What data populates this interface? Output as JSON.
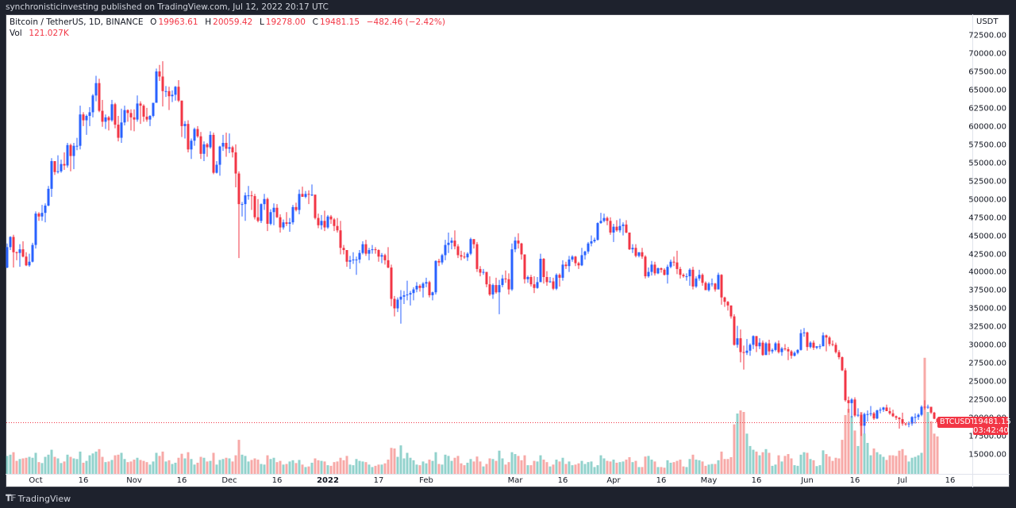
{
  "header": {
    "published": "synchronisticinvesting published on TradingView.com, Jul 12, 2022 20:17 UTC"
  },
  "legend": {
    "symbol": "Bitcoin / TetherUS, 1D, BINANCE",
    "o_label": "O",
    "o": "19963.61",
    "h_label": "H",
    "h": "20059.42",
    "l_label": "L",
    "l": "19278.00",
    "c_label": "C",
    "c": "19481.15",
    "change": "−482.46 (−2.42%)",
    "vol_label": "Vol",
    "vol": "121.027K"
  },
  "price_axis": {
    "unit": "USDT",
    "labels": [
      "72500.00",
      "70000.00",
      "67500.00",
      "65000.00",
      "62500.00",
      "60000.00",
      "57500.00",
      "55000.00",
      "52500.00",
      "50000.00",
      "47500.00",
      "45000.00",
      "42500.00",
      "40000.00",
      "37500.00",
      "35000.00",
      "32500.00",
      "30000.00",
      "27500.00",
      "25000.00",
      "22500.00",
      "20000.00",
      "17500.00",
      "15000.00"
    ],
    "current_symbol": "BTCUSDT",
    "current_price": "19481.15",
    "countdown": "03:42:40"
  },
  "time_axis": {
    "labels": [
      {
        "text": "Oct",
        "date": "2021-10-01"
      },
      {
        "text": "16",
        "date": "2021-10-16"
      },
      {
        "text": "Nov",
        "date": "2021-11-01"
      },
      {
        "text": "16",
        "date": "2021-11-16"
      },
      {
        "text": "Dec",
        "date": "2021-12-01"
      },
      {
        "text": "16",
        "date": "2021-12-16"
      },
      {
        "text": "2022",
        "date": "2022-01-01",
        "bold": true
      },
      {
        "text": "17",
        "date": "2022-01-17"
      },
      {
        "text": "Feb",
        "date": "2022-02-01"
      },
      {
        "text": "Mar",
        "date": "2022-03-01"
      },
      {
        "text": "16",
        "date": "2022-03-16"
      },
      {
        "text": "Apr",
        "date": "2022-04-01"
      },
      {
        "text": "16",
        "date": "2022-04-16"
      },
      {
        "text": "May",
        "date": "2022-05-01"
      },
      {
        "text": "16",
        "date": "2022-05-16"
      },
      {
        "text": "Jun",
        "date": "2022-06-01"
      },
      {
        "text": "16",
        "date": "2022-06-16"
      },
      {
        "text": "Jul",
        "date": "2022-07-01"
      },
      {
        "text": "16",
        "date": "2022-07-16"
      }
    ]
  },
  "footer": {
    "brand": "TradingView",
    "logo_text": "17"
  },
  "colors": {
    "up": "#2962ff",
    "down": "#f23645",
    "vol_up": "rgba(38,166,154,0.5)",
    "vol_down": "rgba(239,83,80,0.5)",
    "background": "#1e222d"
  },
  "chart_data": {
    "type": "candlestick",
    "symbol": "BTCUSDT",
    "interval": "1D",
    "first_date": "2021-09-22",
    "first_open": 40700,
    "ylim": [
      12500,
      75000
    ],
    "close": [
      43500,
      44900,
      42800,
      42700,
      43200,
      42200,
      41000,
      41500,
      43800,
      48100,
      47700,
      48200,
      49200,
      51500,
      55300,
      53800,
      53900,
      54900,
      54700,
      57500,
      56000,
      57400,
      57400,
      61700,
      60900,
      61500,
      62000,
      64300,
      66000,
      62200,
      60700,
      61300,
      60900,
      63100,
      60300,
      58500,
      60600,
      62300,
      61900,
      61300,
      61000,
      63200,
      62900,
      61400,
      61000,
      61500,
      63300,
      67600,
      66900,
      64900,
      64900,
      64200,
      64400,
      65500,
      63600,
      60100,
      60400,
      56900,
      58100,
      59700,
      58700,
      56300,
      57600,
      57200,
      58900,
      53700,
      54800,
      57300,
      57800,
      57000,
      57200,
      56500,
      53600,
      49400,
      49400,
      50600,
      50600,
      50500,
      47600,
      47100,
      49400,
      50100,
      46700,
      48300,
      48900,
      47600,
      46200,
      46900,
      46700,
      46900,
      49000,
      48600,
      50800,
      50400,
      50800,
      50700,
      50700,
      47500,
      46500,
      47100,
      46200,
      47700,
      47300,
      46400,
      45800,
      43400,
      43100,
      41500,
      41700,
      41800,
      41800,
      42700,
      43900,
      42600,
      43100,
      43200,
      43100,
      42200,
      42400,
      41700,
      40700,
      36400,
      35100,
      36300,
      36700,
      36900,
      37000,
      37200,
      37700,
      38200,
      37900,
      38500,
      38700,
      36900,
      37300,
      41600,
      41400,
      42400,
      43800,
      44100,
      44400,
      43600,
      42400,
      42200,
      42100,
      42600,
      44600,
      43900,
      40500,
      40000,
      40100,
      38400,
      37000,
      38300,
      37300,
      38300,
      39200,
      39100,
      37700,
      43200,
      44400,
      44000,
      42500,
      39100,
      39400,
      38400,
      37900,
      38700,
      41900,
      39400,
      38700,
      38800,
      37800,
      39700,
      39300,
      41100,
      40900,
      41800,
      42200,
      41300,
      41000,
      42400,
      42900,
      44000,
      44300,
      44500,
      46800,
      47100,
      47500,
      47100,
      45500,
      46300,
      45800,
      46400,
      46600,
      45500,
      43200,
      43400,
      42300,
      42800,
      42200,
      39500,
      40100,
      41100,
      39900,
      40600,
      40400,
      39700,
      40800,
      41500,
      41400,
      40500,
      39700,
      39500,
      39500,
      40400,
      38100,
      39200,
      39700,
      38600,
      37600,
      38500,
      38500,
      37700,
      39700,
      36600,
      36000,
      35500,
      34000,
      30100,
      31000,
      29100,
      29000,
      29300,
      30100,
      31300,
      29900,
      30400,
      28700,
      30300,
      29200,
      29400,
      30300,
      29100,
      29600,
      29500,
      29200,
      28600,
      29000,
      29400,
      31700,
      31800,
      29800,
      30400,
      29700,
      29900,
      29900,
      31400,
      31100,
      30200,
      30100,
      29100,
      28400,
      26600,
      22500,
      22100,
      22600,
      20400,
      20500,
      19000,
      20600,
      20600,
      20700,
      20000,
      21100,
      21200,
      21500,
      21000,
      20700,
      20300,
      20100,
      19900,
      19300,
      19200,
      19300,
      20200,
      20200,
      20500,
      21600,
      21580,
      21600,
      20800,
      19963.61,
      19481.15
    ],
    "high": [
      44000,
      45000,
      45200,
      42900,
      43900,
      44300,
      42800,
      42600,
      44100,
      48400,
      48300,
      49300,
      49500,
      51900,
      55700,
      55300,
      56100,
      55500,
      56500,
      57800,
      57700,
      57800,
      58500,
      62900,
      62000,
      61700,
      62700,
      64500,
      67000,
      66600,
      63700,
      61700,
      61500,
      63700,
      63300,
      61500,
      62500,
      62900,
      62400,
      62400,
      62400,
      64300,
      63500,
      63100,
      62600,
      61600,
      63300,
      68000,
      68500,
      69000,
      65600,
      65500,
      65000,
      65600,
      66400,
      63600,
      60800,
      60900,
      58400,
      59900,
      60100,
      59300,
      58000,
      57800,
      59400,
      59200,
      55300,
      57400,
      58900,
      59200,
      59100,
      57400,
      57600,
      53900,
      49700,
      51000,
      51900,
      51200,
      50800,
      50100,
      49500,
      50800,
      50300,
      48700,
      49500,
      49400,
      48000,
      47300,
      48300,
      47500,
      49300,
      49600,
      51400,
      51800,
      51200,
      51300,
      52100,
      50700,
      48100,
      47900,
      48500,
      47900,
      47900,
      47500,
      47500,
      47100,
      43800,
      43100,
      42300,
      42800,
      42200,
      43100,
      44300,
      44500,
      43400,
      43800,
      43500,
      43200,
      42700,
      42600,
      43500,
      41100,
      36800,
      36600,
      37600,
      37500,
      38900,
      37500,
      38000,
      38700,
      38400,
      38700,
      39300,
      38900,
      37400,
      41700,
      41900,
      42600,
      44500,
      45500,
      44800,
      45800,
      43900,
      43000,
      42800,
      42800,
      44800,
      44600,
      44200,
      40900,
      40500,
      40100,
      39500,
      38500,
      39300,
      39000,
      39700,
      40300,
      39900,
      44000,
      44900,
      45400,
      44100,
      42500,
      39600,
      39700,
      39500,
      39400,
      42600,
      42000,
      40200,
      39400,
      39300,
      39900,
      39900,
      41700,
      41500,
      42300,
      42400,
      42300,
      41500,
      43400,
      43000,
      44200,
      45100,
      44800,
      46900,
      48200,
      48100,
      47700,
      47600,
      46700,
      47200,
      47400,
      46900,
      47200,
      45500,
      43900,
      43900,
      42800,
      43400,
      42400,
      40700,
      41600,
      41500,
      40700,
      40700,
      40600,
      41100,
      41800,
      42200,
      43000,
      40800,
      39900,
      39900,
      40600,
      40800,
      39500,
      40400,
      39900,
      38800,
      38700,
      39200,
      38600,
      40000,
      39800,
      36700,
      36100,
      35500,
      34300,
      32700,
      32200,
      30000,
      30900,
      30300,
      31400,
      31300,
      31000,
      30700,
      30500,
      30800,
      29600,
      30500,
      30700,
      29800,
      30200,
      29800,
      29400,
      29200,
      29500,
      32200,
      32400,
      31900,
      30600,
      30700,
      29900,
      30200,
      31800,
      31500,
      31300,
      30700,
      30400,
      29400,
      28500,
      26900,
      23000,
      22800,
      22900,
      21400,
      20800,
      20800,
      21100,
      21700,
      20900,
      21200,
      21500,
      21600,
      21900,
      21500,
      21200,
      20400,
      20200,
      20800,
      19400,
      19600,
      20300,
      20700,
      20700,
      21800,
      22500,
      21900,
      21600,
      20900,
      20059.42
    ],
    "low": [
      40600,
      43100,
      40700,
      41700,
      40800,
      42100,
      40900,
      40800,
      41400,
      43300,
      47100,
      47100,
      46900,
      49100,
      50400,
      53400,
      53600,
      53700,
      54100,
      54400,
      53900,
      54200,
      56800,
      56900,
      60100,
      58900,
      60100,
      61300,
      63500,
      62000,
      60000,
      59700,
      59500,
      60700,
      59800,
      58000,
      57800,
      60200,
      60700,
      59500,
      59400,
      60700,
      60400,
      60700,
      60700,
      60100,
      61300,
      63300,
      66300,
      62800,
      64100,
      62300,
      63400,
      63600,
      63400,
      58600,
      58400,
      56500,
      55600,
      57400,
      58500,
      55600,
      55300,
      55900,
      57000,
      53500,
      53600,
      53300,
      56700,
      55900,
      56400,
      55800,
      51700,
      42000,
      47700,
      47100,
      50000,
      48600,
      47300,
      46900,
      46800,
      48600,
      45700,
      46500,
      46500,
      47500,
      45500,
      45900,
      46400,
      45600,
      46600,
      48400,
      48000,
      50400,
      50200,
      49400,
      50500,
      47300,
      46100,
      45900,
      45700,
      46000,
      46700,
      45700,
      45500,
      42500,
      42500,
      40800,
      40500,
      41200,
      39700,
      41300,
      42500,
      42300,
      41700,
      42600,
      42600,
      41500,
      41300,
      41100,
      40600,
      35400,
      34000,
      34600,
      33000,
      35700,
      36200,
      35500,
      36200,
      37300,
      37400,
      36600,
      38000,
      36600,
      36200,
      37000,
      40900,
      41100,
      41700,
      42700,
      43200,
      43200,
      42000,
      41700,
      41900,
      41600,
      42400,
      43300,
      40100,
      39500,
      39700,
      38000,
      36800,
      36400,
      37100,
      34300,
      38000,
      38600,
      37000,
      37500,
      42800,
      43300,
      41800,
      38500,
      38600,
      38100,
      37200,
      37800,
      38700,
      38500,
      38200,
      38600,
      37600,
      37600,
      38100,
      38900,
      40500,
      40100,
      41500,
      40900,
      40500,
      40900,
      41800,
      42600,
      43600,
      44100,
      44400,
      46700,
      46900,
      46500,
      45200,
      44200,
      45600,
      45500,
      45100,
      45400,
      43100,
      42700,
      42100,
      42100,
      41900,
      39200,
      39300,
      39600,
      39600,
      39800,
      40000,
      39600,
      38500,
      40600,
      40900,
      39800,
      39200,
      39300,
      38900,
      38200,
      37700,
      37900,
      38900,
      38200,
      37600,
      37400,
      38100,
      37400,
      37700,
      35600,
      35300,
      34800,
      33700,
      30000,
      29700,
      27700,
      26700,
      28700,
      28600,
      29500,
      29100,
      29500,
      28600,
      28700,
      28700,
      28900,
      29200,
      28900,
      28600,
      29300,
      28000,
      28200,
      28500,
      28800,
      29300,
      31200,
      29300,
      29600,
      29400,
      29500,
      29500,
      29900,
      29200,
      29900,
      29900,
      28900,
      28100,
      26500,
      22300,
      20800,
      20100,
      20200,
      20200,
      17600,
      17900,
      19600,
      20300,
      19800,
      19900,
      20700,
      20900,
      21000,
      20500,
      20200,
      19800,
      18600,
      19000,
      19000,
      18800,
      19000,
      19300,
      19800,
      20300,
      21200,
      21300,
      20600,
      19900,
      19278
    ],
    "volume_k": [
      58,
      62,
      70,
      42,
      48,
      50,
      52,
      55,
      52,
      68,
      38,
      35,
      55,
      62,
      78,
      55,
      50,
      35,
      40,
      62,
      55,
      50,
      48,
      72,
      36,
      42,
      60,
      66,
      72,
      80,
      55,
      38,
      40,
      45,
      60,
      62,
      68,
      48,
      38,
      40,
      46,
      52,
      45,
      42,
      38,
      30,
      40,
      68,
      58,
      72,
      40,
      44,
      32,
      36,
      52,
      65,
      50,
      70,
      48,
      30,
      36,
      55,
      52,
      40,
      42,
      68,
      30,
      45,
      48,
      52,
      50,
      40,
      60,
      110,
      62,
      58,
      40,
      45,
      50,
      46,
      32,
      30,
      60,
      48,
      52,
      38,
      42,
      30,
      32,
      40,
      44,
      35,
      45,
      30,
      22,
      24,
      36,
      50,
      44,
      42,
      40,
      28,
      26,
      38,
      40,
      52,
      44,
      58,
      30,
      28,
      48,
      42,
      40,
      38,
      30,
      22,
      26,
      30,
      30,
      34,
      46,
      84,
      82,
      55,
      92,
      50,
      68,
      52,
      44,
      30,
      28,
      40,
      34,
      46,
      42,
      70,
      32,
      30,
      62,
      58,
      42,
      52,
      58,
      34,
      28,
      36,
      48,
      40,
      56,
      40,
      24,
      32,
      50,
      48,
      42,
      75,
      50,
      30,
      38,
      70,
      64,
      58,
      44,
      60,
      28,
      28,
      42,
      40,
      60,
      46,
      38,
      24,
      30,
      46,
      40,
      52,
      32,
      40,
      28,
      30,
      34,
      42,
      32,
      38,
      40,
      22,
      28,
      60,
      50,
      42,
      40,
      46,
      36,
      38,
      40,
      46,
      54,
      38,
      42,
      22,
      22,
      56,
      58,
      46,
      40,
      22,
      22,
      20,
      44,
      36,
      38,
      42,
      46,
      24,
      22,
      48,
      62,
      46,
      44,
      40,
      26,
      30,
      32,
      32,
      44,
      72,
      48,
      48,
      54,
      160,
      195,
      205,
      200,
      130,
      90,
      78,
      72,
      60,
      70,
      80,
      68,
      26,
      30,
      60,
      40,
      58,
      64,
      50,
      28,
      26,
      62,
      70,
      68,
      48,
      44,
      25,
      28,
      76,
      64,
      56,
      42,
      52,
      50,
      110,
      190,
      210,
      187,
      140,
      90,
      200,
      130,
      100,
      60,
      82,
      70,
      63,
      55,
      45,
      60,
      60,
      58,
      75,
      80,
      60,
      40,
      52,
      55,
      60,
      68,
      375,
      200,
      170,
      130,
      121.027
    ]
  }
}
